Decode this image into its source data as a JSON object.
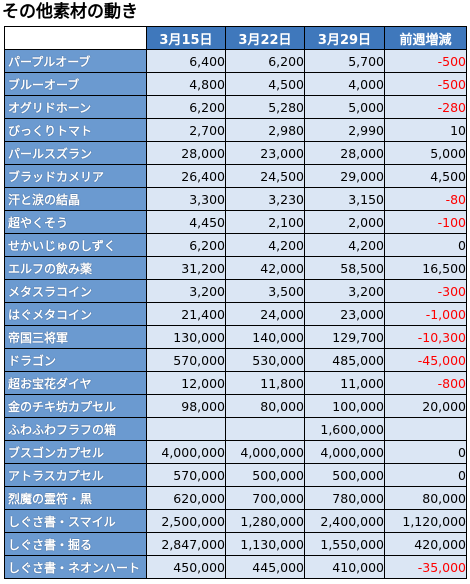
{
  "title": "その他素材の動き",
  "headers": [
    "",
    "3月15日",
    "3月22日",
    "3月29日",
    "前週増減"
  ],
  "rows": [
    {
      "name": "パープルオーブ",
      "values": [
        "6,400",
        "6,200",
        "5,700",
        "-500"
      ]
    },
    {
      "name": "ブルーオーブ",
      "values": [
        "4,800",
        "4,500",
        "4,000",
        "-500"
      ]
    },
    {
      "name": "オグリドホーン",
      "values": [
        "6,200",
        "5,280",
        "5,000",
        "-280"
      ]
    },
    {
      "name": "びっくりトマト",
      "values": [
        "2,700",
        "2,980",
        "2,990",
        "10"
      ]
    },
    {
      "name": "パールスズラン",
      "values": [
        "28,000",
        "23,000",
        "28,000",
        "5,000"
      ]
    },
    {
      "name": "ブラッドカメリア",
      "values": [
        "26,400",
        "24,500",
        "29,000",
        "4,500"
      ]
    },
    {
      "name": "汗と涙の結晶",
      "values": [
        "3,300",
        "3,230",
        "3,150",
        "-80"
      ]
    },
    {
      "name": "超やくそう",
      "values": [
        "4,450",
        "2,100",
        "2,000",
        "-100"
      ]
    },
    {
      "name": "せかいじゅのしずく",
      "values": [
        "6,200",
        "4,200",
        "4,200",
        "0"
      ]
    },
    {
      "name": "エルフの飲み薬",
      "values": [
        "31,200",
        "42,000",
        "58,500",
        "16,500"
      ]
    },
    {
      "name": "メタスラコイン",
      "values": [
        "3,200",
        "3,500",
        "3,200",
        "-300"
      ]
    },
    {
      "name": "はぐメタコイン",
      "values": [
        "21,400",
        "24,000",
        "23,000",
        "-1,000"
      ]
    },
    {
      "name": "帝国三将軍",
      "values": [
        "130,000",
        "140,000",
        "129,700",
        "-10,300"
      ]
    },
    {
      "name": "ドラゴン",
      "values": [
        "570,000",
        "530,000",
        "485,000",
        "-45,000"
      ]
    },
    {
      "name": "超お宝花ダイヤ",
      "values": [
        "12,000",
        "11,800",
        "11,000",
        "-800"
      ]
    },
    {
      "name": "金のチキ坊カプセル",
      "values": [
        "98,000",
        "80,000",
        "100,000",
        "20,000"
      ]
    },
    {
      "name": "ふわふわフラフの箱",
      "values": [
        "",
        "",
        "1,600,000",
        ""
      ]
    },
    {
      "name": "ブスゴンカプセル",
      "values": [
        "4,000,000",
        "4,000,000",
        "4,000,000",
        "0"
      ]
    },
    {
      "name": "アトラスカプセル",
      "values": [
        "570,000",
        "500,000",
        "500,000",
        "0"
      ]
    },
    {
      "name": "烈魔の霊符・黒",
      "values": [
        "620,000",
        "700,000",
        "780,000",
        "80,000"
      ]
    },
    {
      "name": "しぐさ書・スマイル",
      "values": [
        "2,500,000",
        "1,280,000",
        "2,400,000",
        "1,120,000"
      ]
    },
    {
      "name": "しぐさ書・掘る",
      "values": [
        "2,847,000",
        "1,130,000",
        "1,550,000",
        "420,000"
      ]
    },
    {
      "name": "しぐさ書・ネオンハート",
      "values": [
        "450,000",
        "445,000",
        "410,000",
        "-35,000"
      ]
    }
  ],
  "colors": {
    "header_bg": "#3f78bc",
    "name_bg": "#6b9ad0",
    "cell_bg": "#dbe6f4",
    "negative": "#ff0000"
  }
}
